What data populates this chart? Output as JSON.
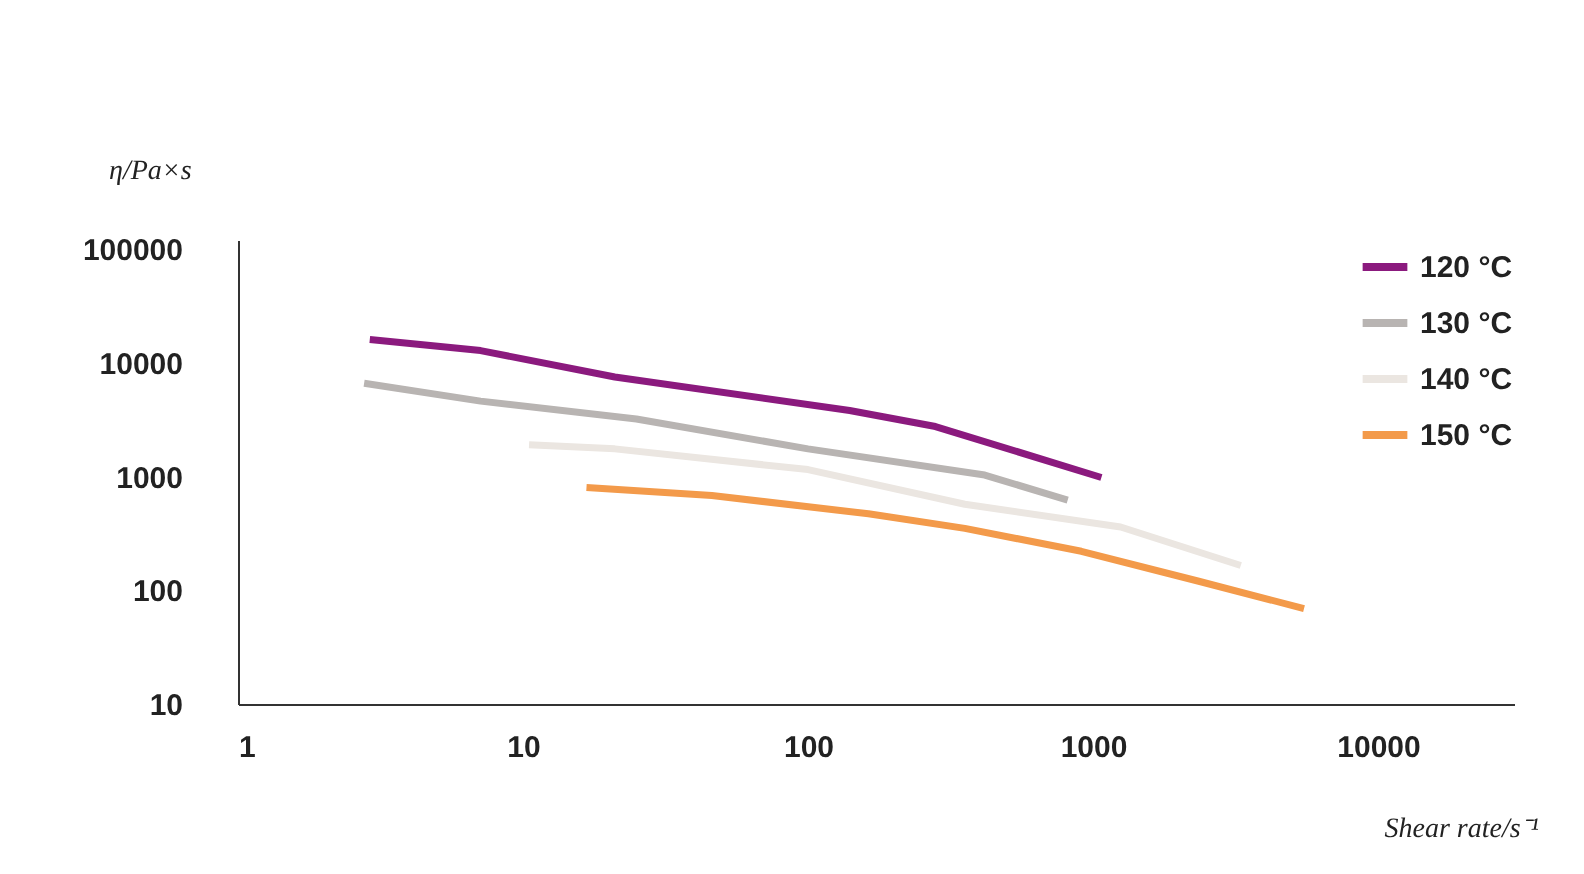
{
  "chart_data": {
    "type": "line",
    "xlabel": "Shear rate/s⁻¹",
    "ylabel": "η/Pa×s",
    "log": "xy",
    "xlim": [
      1,
      30000
    ],
    "ylim": [
      10,
      120000
    ],
    "xticks": [
      1,
      10,
      100,
      1000,
      10000
    ],
    "yticks": [
      10,
      100,
      1000,
      10000,
      100000
    ],
    "grid": false,
    "legend": "top right",
    "series": [
      {
        "name": "120 °C",
        "color": "#8b1a7e",
        "x": [
          2.9,
          7.1,
          21,
          140,
          280,
          1070
        ],
        "values": [
          16000,
          12800,
          7500,
          3800,
          2750,
          980
        ]
      },
      {
        "name": "130 °C",
        "color": "#b8b4b2",
        "x": [
          2.77,
          7.1,
          25,
          100,
          417,
          815
        ],
        "values": [
          6600,
          4600,
          3200,
          1750,
          1030,
          620
        ]
      },
      {
        "name": "140 °C",
        "color": "#ebe6e1",
        "x": [
          10.5,
          21,
          100,
          355,
          1250,
          3300
        ],
        "values": [
          1900,
          1750,
          1150,
          570,
          360,
          165
        ]
      },
      {
        "name": "150 °C",
        "color": "#f39a4a",
        "x": [
          16.7,
          46,
          163,
          355,
          910,
          2350,
          5500
        ],
        "values": [
          800,
          680,
          470,
          350,
          220,
          120,
          69
        ]
      }
    ]
  }
}
